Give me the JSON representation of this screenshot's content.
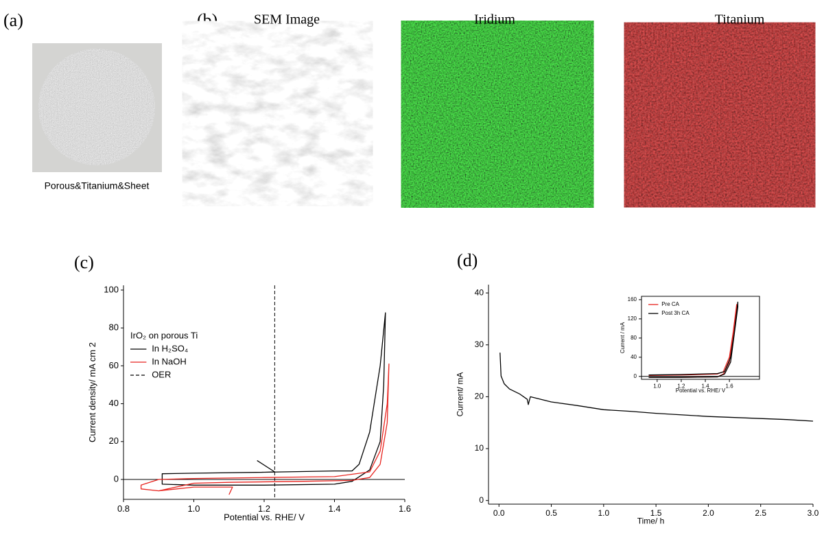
{
  "panel_labels": [
    "(a)",
    "(b)",
    "(c)",
    "(d)"
  ],
  "photo_caption": "Porous&Titanium&Sheet",
  "image_titles": [
    "SEM Image",
    "Iridium",
    "Titanium"
  ],
  "chart_data": [
    {
      "type": "line",
      "x_label": "Potential vs. RHE/ V",
      "y_label": "Current density/ mA cm 2",
      "legend_title": "IrO₂ on porous Ti",
      "xlim": [
        0.8,
        1.6
      ],
      "xticks": [
        0.8,
        {
          "value": 1.0,
          "label": "1.0"
        },
        1.2,
        1.4,
        1.6
      ],
      "ylim": [
        -10.5,
        102.5
      ],
      "yticks": [
        0,
        20,
        40,
        60,
        80,
        100
      ],
      "zero_line": true,
      "series": [
        {
          "name": "In H₂SO₄",
          "color": "#000000",
          "x": [
            1.18,
            1.23,
            1.2,
            1.0,
            0.91,
            0.91,
            1.0,
            1.2,
            1.4,
            1.45,
            1.5,
            1.53,
            1.54,
            1.545,
            1.53,
            1.5,
            1.47,
            1.45,
            1.4,
            1.2,
            1.0,
            0.91
          ],
          "values": [
            10,
            4,
            3.8,
            3.3,
            3,
            -2.5,
            -3,
            -3,
            -2.5,
            -1,
            5,
            20,
            50,
            88,
            60,
            25,
            8,
            4.5,
            4.5,
            3.8,
            3.3,
            3
          ]
        },
        {
          "name": "In NaOH",
          "color": "#e8231e",
          "x": [
            1.1,
            1.11,
            1.0,
            0.9,
            0.85,
            0.85,
            0.9,
            1.0,
            1.2,
            1.4,
            1.5,
            1.53,
            1.55,
            1.555,
            1.55,
            1.53,
            1.5,
            1.45,
            1.3,
            1.1,
            1.0,
            0.9,
            0.85
          ],
          "values": [
            -8,
            -4,
            -4,
            -6,
            -5,
            -3,
            0,
            0.5,
            1,
            1.5,
            4,
            15,
            40,
            61,
            30,
            8,
            1,
            -0.5,
            -1,
            -1.5,
            -2,
            -6,
            -5
          ]
        }
      ],
      "reference_lines": [
        {
          "name": "OER",
          "x": 1.23,
          "color": "#000000",
          "dashed": true
        }
      ]
    },
    {
      "type": "line",
      "x_label": "Time/ h",
      "y_label": "Current/ mA",
      "xlim": [
        -0.1,
        3.0
      ],
      "xticks": [
        {
          "value": 0,
          "label": "0.0"
        },
        0.5,
        {
          "value": 1,
          "label": "1.0"
        },
        1.5,
        {
          "value": 2,
          "label": "2.0"
        },
        2.5,
        {
          "value": 3,
          "label": "3.0"
        }
      ],
      "ylim": [
        -0.7,
        41.6
      ],
      "yticks": [
        0,
        10,
        20,
        30,
        40
      ],
      "series": [
        {
          "color": "#000000",
          "x": [
            0.01,
            0.02,
            0.05,
            0.1,
            0.2,
            0.27,
            0.28,
            0.3,
            0.5,
            0.75,
            1.0,
            1.25,
            1.5,
            1.75,
            2.0,
            2.25,
            2.5,
            2.75,
            3.0
          ],
          "values": [
            28.5,
            24,
            22.5,
            21.5,
            20.5,
            19.5,
            18.5,
            20,
            19,
            18.3,
            17.5,
            17.2,
            16.8,
            16.5,
            16.2,
            16,
            15.8,
            15.6,
            15.3
          ]
        }
      ]
    },
    {
      "type": "line",
      "x_label": "Potential vs. RHE/ V",
      "y_label": "Current / mA",
      "xlim": [
        0.87,
        1.85
      ],
      "xticks": [
        {
          "value": 1.0,
          "label": "1.0"
        },
        1.2,
        1.4,
        1.6
      ],
      "ylim": [
        -6,
        167
      ],
      "yticks": [
        0,
        40,
        80,
        120,
        160
      ],
      "zero_line": true,
      "series": [
        {
          "name": "Pre CA",
          "color": "#e8231e",
          "x": [
            0.93,
            1.2,
            1.5,
            1.55,
            1.6,
            1.63,
            1.66,
            1.66,
            1.6,
            1.55,
            1.5,
            1.2,
            0.93
          ],
          "values": [
            2,
            3,
            5,
            10,
            40,
            90,
            150,
            140,
            30,
            5,
            -1,
            -2,
            -2
          ]
        },
        {
          "name": "Post 3h CA",
          "color": "#000000",
          "x": [
            0.93,
            1.2,
            1.5,
            1.56,
            1.61,
            1.64,
            1.67,
            1.67,
            1.61,
            1.56,
            1.5,
            1.2,
            0.93
          ],
          "values": [
            3,
            4,
            6,
            10,
            40,
            90,
            155,
            145,
            30,
            5,
            -1,
            -2,
            -2
          ]
        }
      ]
    }
  ]
}
